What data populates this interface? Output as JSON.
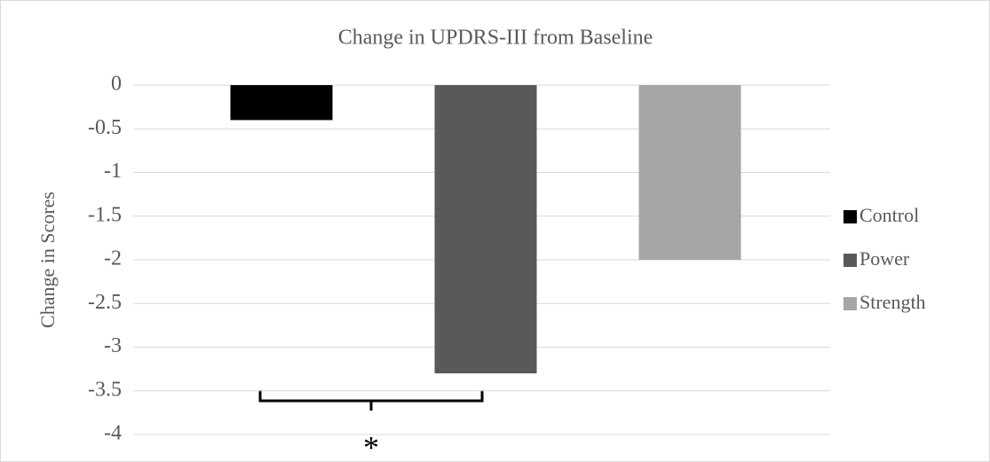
{
  "chart_data": {
    "type": "bar",
    "title": "Change in UPDRS-III from Baseline",
    "y_label": "Change in Scores",
    "series": [
      {
        "name": "Control",
        "color": "#000000",
        "values": [
          -0.4
        ]
      },
      {
        "name": "Power",
        "color": "#595959",
        "values": [
          -3.3
        ]
      },
      {
        "name": "Strength",
        "color": "#a6a6a6",
        "values": [
          -2
        ]
      }
    ],
    "ylim": [
      -4,
      0
    ],
    "yticks": [
      0,
      -0.5,
      -1,
      -1.5,
      -2,
      -2.5,
      -3,
      -3.5,
      -4
    ],
    "grid": true,
    "legend": "right",
    "annotation": "*"
  }
}
